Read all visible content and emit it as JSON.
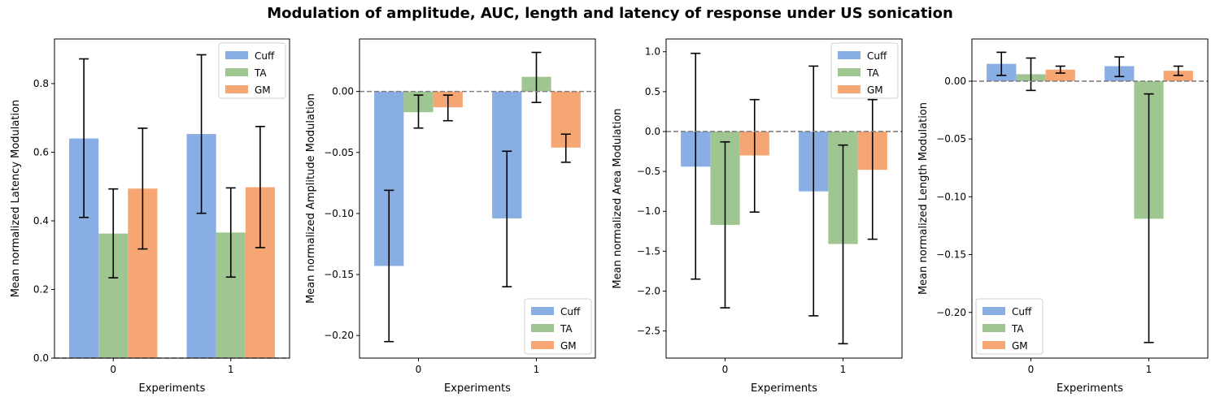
{
  "figure": {
    "suptitle": "Modulation of amplitude, AUC, length and latency of response under US sonication"
  },
  "chart_data": [
    {
      "type": "bar",
      "title": "",
      "xlabel": "Experiments",
      "ylabel": "Mean normalized Latency Modulation",
      "categories": [
        "0",
        "1"
      ],
      "ylim": [
        0.0,
        0.93
      ],
      "yticks": [
        0.0,
        0.2,
        0.4,
        0.6,
        0.8
      ],
      "ytick_labels": [
        "0.0",
        "0.2",
        "0.4",
        "0.6",
        "0.8"
      ],
      "reference_line": 0.0,
      "legend_position": "upper right",
      "series": [
        {
          "name": "Cuff",
          "color": "#88aee3",
          "values": [
            0.64,
            0.653
          ],
          "err_low": [
            0.41,
            0.422
          ],
          "err_high": [
            0.872,
            0.884
          ]
        },
        {
          "name": "TA",
          "color": "#9fc690",
          "values": [
            0.363,
            0.366
          ],
          "err_low": [
            0.234,
            0.236
          ],
          "err_high": [
            0.493,
            0.496
          ]
        },
        {
          "name": "GM",
          "color": "#f6a673",
          "values": [
            0.494,
            0.498
          ],
          "err_low": [
            0.318,
            0.322
          ],
          "err_high": [
            0.67,
            0.675
          ]
        }
      ]
    },
    {
      "type": "bar",
      "title": "",
      "xlabel": "Experiments",
      "ylabel": "Mean normalized Amplitude Modulation",
      "categories": [
        "0",
        "1"
      ],
      "ylim": [
        -0.2185,
        0.043
      ],
      "yticks": [
        -0.2,
        -0.15,
        -0.1,
        -0.05,
        0.0
      ],
      "ytick_labels": [
        "−0.20",
        "−0.15",
        "−0.10",
        "−0.05",
        "0.00"
      ],
      "reference_line": 0.0,
      "legend_position": "lower right",
      "series": [
        {
          "name": "Cuff",
          "color": "#88aee3",
          "values": [
            -0.143,
            -0.104
          ],
          "err_low": [
            -0.205,
            -0.16
          ],
          "err_high": [
            -0.081,
            -0.049
          ]
        },
        {
          "name": "TA",
          "color": "#9fc690",
          "values": [
            -0.017,
            0.012
          ],
          "err_low": [
            -0.03,
            -0.009
          ],
          "err_high": [
            -0.003,
            0.032
          ]
        },
        {
          "name": "GM",
          "color": "#f6a673",
          "values": [
            -0.013,
            -0.046
          ],
          "err_low": [
            -0.024,
            -0.058
          ],
          "err_high": [
            -0.003,
            -0.035
          ]
        }
      ]
    },
    {
      "type": "bar",
      "title": "",
      "xlabel": "Experiments",
      "ylabel": "Mean normalized Area Modulation",
      "categories": [
        "0",
        "1"
      ],
      "ylim": [
        -2.84,
        1.16
      ],
      "yticks": [
        -2.5,
        -2.0,
        -1.5,
        -1.0,
        -0.5,
        0.0,
        0.5,
        1.0
      ],
      "ytick_labels": [
        "−2.5",
        "−2.0",
        "−1.5",
        "−1.0",
        "−0.5",
        "0.0",
        "0.5",
        "1.0"
      ],
      "reference_line": 0.0,
      "legend_position": "upper right",
      "series": [
        {
          "name": "Cuff",
          "color": "#88aee3",
          "values": [
            -0.44,
            -0.75
          ],
          "err_low": [
            -1.85,
            -2.31
          ],
          "err_high": [
            0.98,
            0.82
          ]
        },
        {
          "name": "TA",
          "color": "#9fc690",
          "values": [
            -1.17,
            -1.41
          ],
          "err_low": [
            -2.21,
            -2.66
          ],
          "err_high": [
            -0.13,
            -0.17
          ]
        },
        {
          "name": "GM",
          "color": "#f6a673",
          "values": [
            -0.3,
            -0.48
          ],
          "err_low": [
            -1.01,
            -1.35
          ],
          "err_high": [
            0.4,
            0.4
          ]
        }
      ]
    },
    {
      "type": "bar",
      "title": "",
      "xlabel": "Experiments",
      "ylabel": "Mean normalized Length Modulation",
      "categories": [
        "0",
        "1"
      ],
      "ylim": [
        -0.2395,
        0.0365
      ],
      "yticks": [
        -0.2,
        -0.15,
        -0.1,
        -0.05,
        0.0
      ],
      "ytick_labels": [
        "−0.20",
        "−0.15",
        "−0.10",
        "−0.05",
        "0.00"
      ],
      "reference_line": 0.0,
      "legend_position": "lower left",
      "series": [
        {
          "name": "Cuff",
          "color": "#88aee3",
          "values": [
            0.015,
            0.013
          ],
          "err_low": [
            0.005,
            0.004
          ],
          "err_high": [
            0.025,
            0.021
          ]
        },
        {
          "name": "TA",
          "color": "#9fc690",
          "values": [
            0.006,
            -0.119
          ],
          "err_low": [
            -0.008,
            -0.226
          ],
          "err_high": [
            0.02,
            -0.011
          ]
        },
        {
          "name": "GM",
          "color": "#f6a673",
          "values": [
            0.01,
            0.009
          ],
          "err_low": [
            0.007,
            0.005
          ],
          "err_high": [
            0.013,
            0.013
          ]
        }
      ]
    }
  ]
}
